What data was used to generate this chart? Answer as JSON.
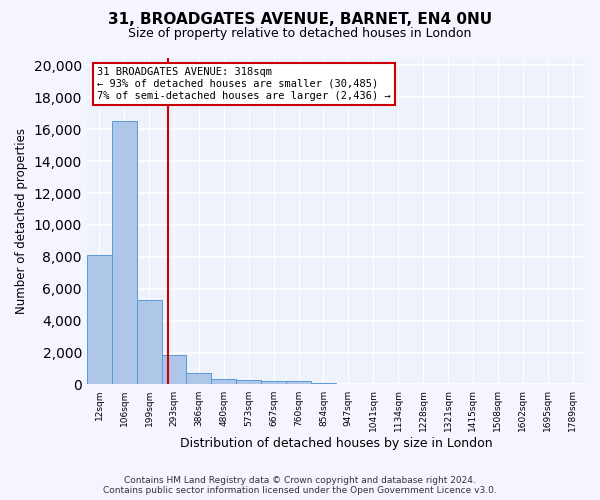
{
  "title": "31, BROADGATES AVENUE, BARNET, EN4 0NU",
  "subtitle": "Size of property relative to detached houses in London",
  "xlabel": "Distribution of detached houses by size in London",
  "ylabel": "Number of detached properties",
  "bar_color": "#aec6e8",
  "bar_edge_color": "#5b9bd5",
  "background_color": "#eef2fb",
  "grid_color": "#ffffff",
  "bin_labels": [
    "12sqm",
    "106sqm",
    "199sqm",
    "293sqm",
    "386sqm",
    "480sqm",
    "573sqm",
    "667sqm",
    "760sqm",
    "854sqm",
    "947sqm",
    "1041sqm",
    "1134sqm",
    "1228sqm",
    "1321sqm",
    "1415sqm",
    "1508sqm",
    "1602sqm",
    "1695sqm",
    "1789sqm"
  ],
  "bar_heights": [
    8100,
    16500,
    5300,
    1850,
    700,
    350,
    275,
    225,
    215,
    80,
    5,
    2,
    1,
    1,
    0,
    0,
    0,
    0,
    0,
    0
  ],
  "vline_x": 2.77,
  "vline_color": "#cc0000",
  "annotation_box_color": "#cc0000",
  "annotation_line1": "31 BROADGATES AVENUE: 318sqm",
  "annotation_line2": "← 93% of detached houses are smaller (30,485)",
  "annotation_line3": "7% of semi-detached houses are larger (2,436) →",
  "ylim": [
    0,
    20500
  ],
  "yticks": [
    0,
    2000,
    4000,
    6000,
    8000,
    10000,
    12000,
    14000,
    16000,
    18000,
    20000
  ],
  "footer_line1": "Contains HM Land Registry data © Crown copyright and database right 2024.",
  "footer_line2": "Contains public sector information licensed under the Open Government Licence v3.0."
}
